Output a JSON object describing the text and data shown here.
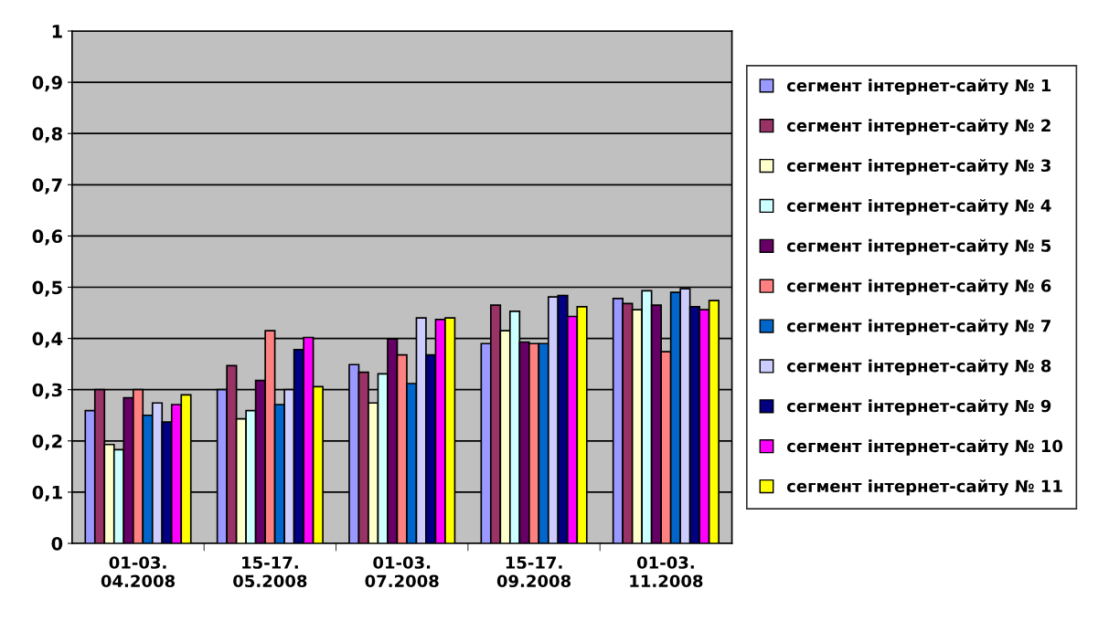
{
  "chart_data": {
    "type": "bar",
    "categories": [
      "01-03.\n04.2008",
      "15-17.\n05.2008",
      "01-03.\n07.2008",
      "15-17.\n09.2008",
      "01-03.\n11.2008"
    ],
    "ylim": [
      0,
      1
    ],
    "yticks": [
      0,
      {
        "value": 0.1,
        "label": "0,1"
      },
      {
        "value": 0.2,
        "label": "0,2"
      },
      {
        "value": 0.3,
        "label": "0,3"
      },
      {
        "value": 0.4,
        "label": "0,4"
      },
      {
        "value": 0.5,
        "label": "0,5"
      },
      {
        "value": 0.6,
        "label": "0,6"
      },
      {
        "value": 0.7,
        "label": "0,7"
      },
      {
        "value": 0.8,
        "label": "0,8"
      },
      {
        "value": 0.9,
        "label": "0,9"
      },
      1
    ],
    "grid": "y",
    "legend": "right",
    "series": [
      {
        "name": "сегмент інтернет-сайту № 1",
        "color": "#9999ff",
        "values": [
          0.259,
          0.3,
          0.349,
          0.39,
          0.478
        ]
      },
      {
        "name": "сегмент інтернет-сайту № 2",
        "color": "#993366",
        "values": [
          0.3,
          0.347,
          0.334,
          0.465,
          0.468
        ]
      },
      {
        "name": "сегмент інтернет-сайту № 3",
        "color": "#ffffcc",
        "values": [
          0.193,
          0.243,
          0.274,
          0.415,
          0.456
        ]
      },
      {
        "name": "сегмент інтернет-сайту № 4",
        "color": "#ccffff",
        "values": [
          0.183,
          0.259,
          0.331,
          0.453,
          0.493
        ]
      },
      {
        "name": "сегмент інтернет-сайту № 5",
        "color": "#660066",
        "values": [
          0.284,
          0.318,
          0.399,
          0.393,
          0.465
        ]
      },
      {
        "name": "сегмент інтернет-сайту № 6",
        "color": "#ff8080",
        "values": [
          0.3,
          0.415,
          0.368,
          0.39,
          0.374
        ]
      },
      {
        "name": "сегмент інтернет-сайту № 7",
        "color": "#0066cc",
        "values": [
          0.25,
          0.271,
          0.312,
          0.39,
          0.49
        ]
      },
      {
        "name": "сегмент інтернет-сайту № 8",
        "color": "#ccccff",
        "values": [
          0.274,
          0.3,
          0.44,
          0.481,
          0.497
        ]
      },
      {
        "name": "сегмент інтернет-сайту № 9",
        "color": "#000080",
        "values": [
          0.237,
          0.378,
          0.368,
          0.484,
          0.462
        ]
      },
      {
        "name": "сегмент інтернет-сайту № 10",
        "color": "#ff00ff",
        "values": [
          0.271,
          0.402,
          0.437,
          0.443,
          0.456
        ]
      },
      {
        "name": "сегмент інтернет-сайту № 11",
        "color": "#ffff00",
        "values": [
          0.29,
          0.306,
          0.44,
          0.462,
          0.474
        ]
      }
    ]
  }
}
